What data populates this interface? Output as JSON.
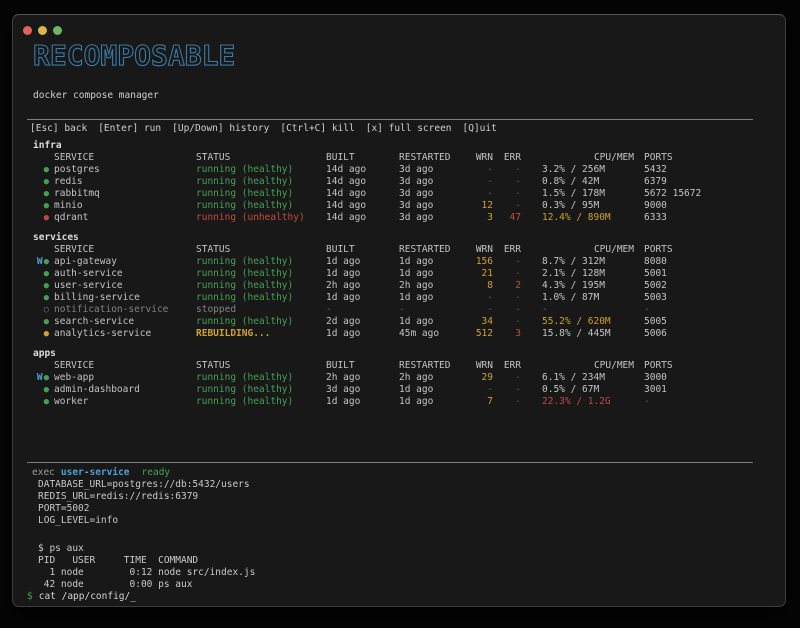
{
  "colors": {
    "accent_blue": "#4ba1d8",
    "title_blue": "#3a7aa6",
    "green": "#46a052",
    "red": "#c04b3c",
    "yellow": "#cfa22e",
    "dim": "#5e5e5e",
    "dim2": "#828282",
    "text": "#cfcfcf",
    "text_bright": "#dcdcdc",
    "traffic_red": "#e0635a",
    "traffic_yellow": "#dbb550",
    "traffic_green": "#6cb862"
  },
  "header": {
    "title": "RECOMPOSABLE",
    "subtitle": "docker compose manager"
  },
  "keybar": {
    "items": [
      "[Esc] back",
      "[Enter] run",
      "[Up/Down] history",
      "[Ctrl+C] kill",
      "[x] full screen",
      "[Q]uit"
    ]
  },
  "columns": [
    "SERVICE",
    "STATUS",
    "BUILT",
    "RESTARTED",
    "WRN",
    "ERR",
    "CPU/MEM",
    "PORTS"
  ],
  "groups": [
    {
      "name": "infra",
      "rows": [
        {
          "watch": false,
          "state": "healthy",
          "service": "postgres",
          "status": "running (healthy)",
          "built": "14d ago",
          "restarted": "3d ago",
          "wrn": "-",
          "err": "-",
          "cpumem": "3.2% / 256M",
          "cpu_level": "normal",
          "ports": "5432"
        },
        {
          "watch": false,
          "state": "healthy",
          "service": "redis",
          "status": "running (healthy)",
          "built": "14d ago",
          "restarted": "3d ago",
          "wrn": "-",
          "err": "-",
          "cpumem": "0.8% / 42M",
          "cpu_level": "normal",
          "ports": "6379"
        },
        {
          "watch": false,
          "state": "healthy",
          "service": "rabbitmq",
          "status": "running (healthy)",
          "built": "14d ago",
          "restarted": "3d ago",
          "wrn": "-",
          "err": "-",
          "cpumem": "1.5% / 178M",
          "cpu_level": "normal",
          "ports": "5672 15672"
        },
        {
          "watch": false,
          "state": "healthy",
          "service": "minio",
          "status": "running (healthy)",
          "built": "14d ago",
          "restarted": "3d ago",
          "wrn": "12",
          "err": "-",
          "cpumem": "0.3% / 95M",
          "cpu_level": "normal",
          "ports": "9000"
        },
        {
          "watch": false,
          "state": "unhealthy",
          "service": "qdrant",
          "status": "running (unhealthy)",
          "built": "14d ago",
          "restarted": "3d ago",
          "wrn": "3",
          "err": "47",
          "cpumem": "12.4% / 890M",
          "cpu_level": "high",
          "ports": "6333"
        }
      ]
    },
    {
      "name": "services",
      "rows": [
        {
          "watch": true,
          "state": "healthy",
          "service": "api-gateway",
          "status": "running (healthy)",
          "built": "1d ago",
          "restarted": "1d ago",
          "wrn": "156",
          "err": "-",
          "cpumem": "8.7% / 312M",
          "cpu_level": "normal",
          "ports": "8080"
        },
        {
          "watch": false,
          "state": "healthy",
          "service": "auth-service",
          "status": "running (healthy)",
          "built": "1d ago",
          "restarted": "1d ago",
          "wrn": "21",
          "err": "-",
          "cpumem": "2.1% / 128M",
          "cpu_level": "normal",
          "ports": "5001"
        },
        {
          "watch": false,
          "state": "healthy",
          "service": "user-service",
          "status": "running (healthy)",
          "built": "2h ago",
          "restarted": "2h ago",
          "wrn": "8",
          "err": "2",
          "cpumem": "4.3% / 195M",
          "cpu_level": "normal",
          "ports": "5002"
        },
        {
          "watch": false,
          "state": "healthy",
          "service": "billing-service",
          "status": "running (healthy)",
          "built": "1d ago",
          "restarted": "1d ago",
          "wrn": "-",
          "err": "-",
          "cpumem": "1.0% / 87M",
          "cpu_level": "normal",
          "ports": "5003"
        },
        {
          "watch": false,
          "state": "stopped",
          "service": "notification-service",
          "status": "stopped",
          "built": "-",
          "restarted": "-",
          "wrn": "-",
          "err": "-",
          "cpumem": "-",
          "cpu_level": "none",
          "ports": "-"
        },
        {
          "watch": false,
          "state": "healthy",
          "service": "search-service",
          "status": "running (healthy)",
          "built": "2d ago",
          "restarted": "1d ago",
          "wrn": "34",
          "err": "-",
          "cpumem": "55.2% / 620M",
          "cpu_level": "high",
          "ports": "5005"
        },
        {
          "watch": false,
          "state": "rebuilding",
          "service": "analytics-service",
          "status": "REBUILDING...",
          "built": "1d ago",
          "restarted": "45m ago",
          "wrn": "512",
          "err": "3",
          "cpumem": "15.8% / 445M",
          "cpu_level": "normal",
          "ports": "5006"
        }
      ]
    },
    {
      "name": "apps",
      "rows": [
        {
          "watch": true,
          "state": "healthy",
          "service": "web-app",
          "status": "running (healthy)",
          "built": "2h ago",
          "restarted": "2h ago",
          "wrn": "29",
          "err": "-",
          "cpumem": "6.1% / 234M",
          "cpu_level": "normal",
          "ports": "3000"
        },
        {
          "watch": false,
          "state": "healthy",
          "service": "admin-dashboard",
          "status": "running (healthy)",
          "built": "3d ago",
          "restarted": "1d ago",
          "wrn": "-",
          "err": "-",
          "cpumem": "0.5% / 67M",
          "cpu_level": "normal",
          "ports": "3001"
        },
        {
          "watch": false,
          "state": "healthy",
          "service": "worker",
          "status": "running (healthy)",
          "built": "1d ago",
          "restarted": "1d ago",
          "wrn": "7",
          "err": "-",
          "cpumem": "22.3% / 1.2G",
          "cpu_level": "critical",
          "ports": "-"
        }
      ]
    }
  ],
  "console": {
    "exec": {
      "command": "exec",
      "service": "user-service",
      "status": "ready"
    },
    "env_lines": [
      "DATABASE_URL=postgres://db:5432/users",
      "REDIS_URL=redis://redis:6379",
      "PORT=5002",
      "LOG_LEVEL=info"
    ],
    "shell_lines": [
      "$ ps aux",
      "PID   USER     TIME  COMMAND",
      "  1 node        0:12 node src/index.js",
      " 42 node        0:00 ps aux"
    ],
    "prompt": {
      "symbol": "$",
      "command": "cat /app/config/",
      "cursor": "_"
    }
  }
}
